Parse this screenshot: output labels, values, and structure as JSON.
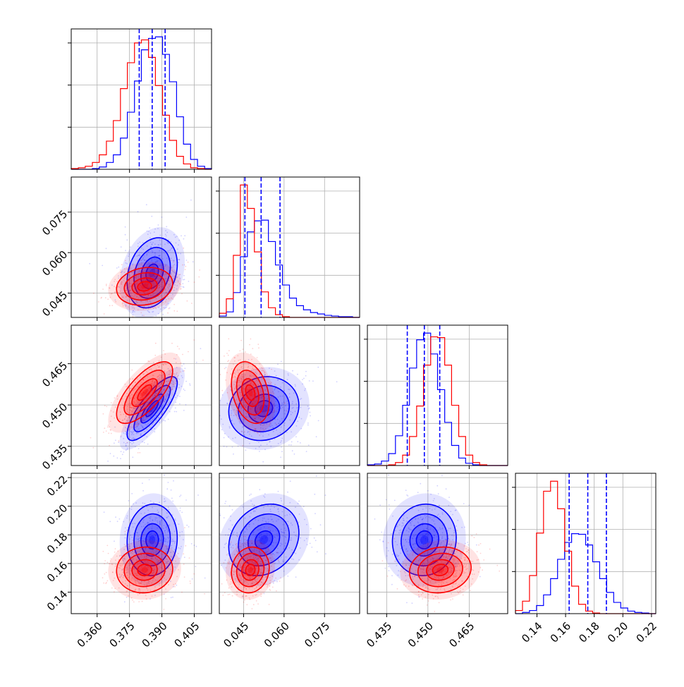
{
  "chart_data": {
    "type": "corner",
    "title": "",
    "n_params": 4,
    "series": [
      {
        "name": "",
        "color": "#0000ff"
      },
      {
        "name": "",
        "color": "#ff0000"
      }
    ],
    "grid": true,
    "params": [
      {
        "range": [
          0.348,
          0.413
        ],
        "ticks": [
          0.36,
          0.375,
          0.39,
          0.405
        ],
        "tick_labels": [
          "0.360",
          "0.375",
          "0.390",
          "0.405"
        ]
      },
      {
        "range": [
          0.036,
          0.088
        ],
        "ticks": [
          0.045,
          0.06,
          0.075
        ],
        "tick_labels": [
          "0.045",
          "0.060",
          "0.075"
        ]
      },
      {
        "range": [
          0.428,
          0.479
        ],
        "ticks": [
          0.435,
          0.45,
          0.465
        ],
        "tick_labels": [
          "0.435",
          "0.450",
          "0.465"
        ]
      },
      {
        "range": [
          0.125,
          0.223
        ],
        "ticks": [
          0.14,
          0.16,
          0.18,
          0.2,
          0.22
        ],
        "tick_labels": [
          "0.14",
          "0.16",
          "0.18",
          "0.20",
          "0.22"
        ]
      }
    ],
    "quantile_color": "#0000ff",
    "quantiles": [
      [
        0.3795,
        0.3855,
        0.3915
      ],
      [
        0.0455,
        0.0515,
        0.0585
      ],
      [
        0.4425,
        0.4487,
        0.4543
      ],
      [
        0.1625,
        0.1755,
        0.1885
      ]
    ],
    "histograms": [
      {
        "bin_edges": [
          0.348,
          0.3513,
          0.3545,
          0.3578,
          0.361,
          0.3643,
          0.3675,
          0.3708,
          0.374,
          0.3773,
          0.3805,
          0.3838,
          0.387,
          0.3903,
          0.3935,
          0.3968,
          0.4,
          0.4033,
          0.4065,
          0.4098,
          0.413
        ],
        "blue": [
          0,
          0,
          0,
          1,
          3,
          9,
          19,
          41,
          75,
          116,
          157,
          172,
          174,
          151,
          115,
          69,
          33,
          13,
          4,
          1
        ],
        "red": [
          1,
          2,
          4,
          9,
          19,
          37,
          64,
          106,
          140,
          166,
          170,
          147,
          110,
          71,
          38,
          17,
          7,
          2,
          1,
          0
        ]
      },
      {
        "bin_edges": [
          0.036,
          0.0386,
          0.0412,
          0.0438,
          0.0464,
          0.049,
          0.0516,
          0.0542,
          0.0568,
          0.0594,
          0.062,
          0.0646,
          0.0672,
          0.0698,
          0.0724,
          0.075,
          0.0776,
          0.0802,
          0.0828,
          0.0854,
          0.088
        ],
        "blue": [
          2,
          8,
          36,
          88,
          124,
          140,
          141,
          110,
          76,
          47,
          28,
          17,
          11,
          7,
          5,
          3,
          2,
          1,
          1,
          0
        ],
        "red": [
          6,
          27,
          90,
          192,
          158,
          95,
          37,
          14,
          4,
          1,
          0,
          0,
          0,
          0,
          0,
          0,
          0,
          0,
          0,
          0
        ]
      },
      {
        "bin_edges": [
          0.428,
          0.4306,
          0.4331,
          0.4357,
          0.4382,
          0.4408,
          0.4433,
          0.4459,
          0.4484,
          0.451,
          0.4535,
          0.4561,
          0.4586,
          0.4612,
          0.4637,
          0.4663,
          0.4688,
          0.4714,
          0.4739,
          0.4765,
          0.479
        ],
        "blue": [
          1,
          2,
          6,
          16,
          40,
          81,
          131,
          169,
          178,
          150,
          102,
          58,
          27,
          10,
          3,
          1,
          0,
          0,
          0,
          0
        ],
        "red": [
          0,
          0,
          0,
          1,
          4,
          14,
          39,
          80,
          135,
          173,
          172,
          135,
          81,
          39,
          14,
          4,
          1,
          0,
          0,
          0
        ]
      },
      {
        "bin_edges": [
          0.125,
          0.1299,
          0.1348,
          0.1397,
          0.1446,
          0.1495,
          0.1544,
          0.1593,
          0.1642,
          0.1691,
          0.174,
          0.1789,
          0.1838,
          0.1887,
          0.1936,
          0.1985,
          0.2034,
          0.2083,
          0.2132,
          0.2181,
          0.223
        ],
        "blue": [
          0,
          2,
          5,
          13,
          30,
          56,
          87,
          114,
          128,
          127,
          110,
          83,
          56,
          34,
          18,
          9,
          4,
          2,
          1,
          0
        ],
        "red": [
          5,
          20,
          61,
          129,
          196,
          212,
          168,
          100,
          44,
          15,
          4,
          1,
          0,
          0,
          0,
          0,
          0,
          0,
          0,
          0
        ]
      }
    ],
    "distributions_2d": [
      {
        "name": "blue",
        "color": "#0000ff",
        "mean": [
          0.3855,
          0.0525,
          0.4487,
          0.1765
        ],
        "sd": [
          0.0058,
          0.0065,
          0.0058,
          0.0125
        ],
        "corr": [
          [
            1,
            0.25,
            0.8,
            0.05
          ],
          [
            0.25,
            1,
            0.1,
            0.2
          ],
          [
            0.8,
            0.1,
            1,
            0.05
          ],
          [
            0.05,
            0.2,
            0.05,
            1
          ]
        ]
      },
      {
        "name": "red",
        "color": "#ff0000",
        "mean": [
          0.382,
          0.0475,
          0.4545,
          0.1555
        ],
        "sd": [
          0.0065,
          0.0035,
          0.0056,
          0.008
        ],
        "corr": [
          [
            1,
            0.15,
            0.7,
            0.05
          ],
          [
            0.15,
            1,
            -0.3,
            0.1
          ],
          [
            0.7,
            -0.3,
            1,
            0.1
          ],
          [
            0.05,
            0.1,
            0.1,
            1
          ]
        ]
      }
    ]
  }
}
